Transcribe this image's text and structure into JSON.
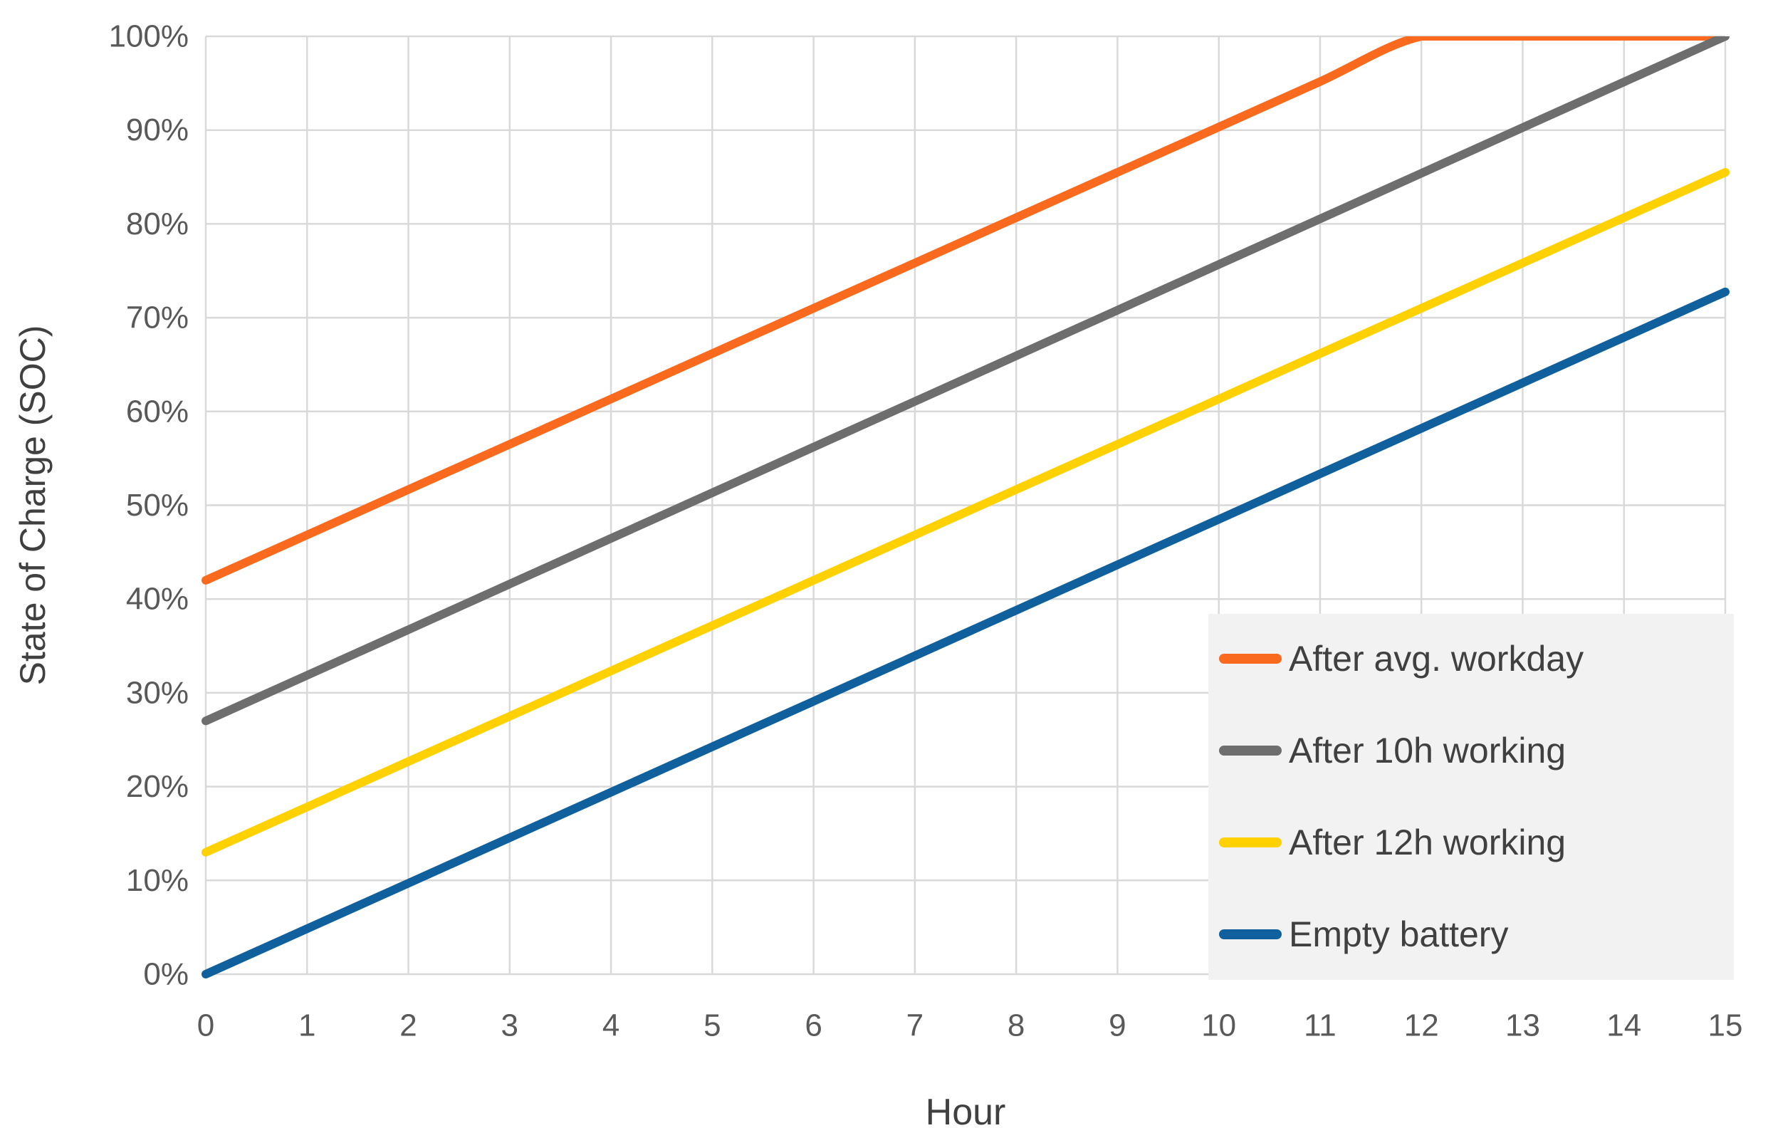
{
  "colors": {
    "background": "#FFFFFF",
    "grid": "#D9D9D9",
    "axis": "#D9D9D9",
    "tick_text": "#595959",
    "title_text": "#404040",
    "legend_bg": "#F2F2F2",
    "legend_text": "#404040"
  },
  "chart_data": {
    "type": "line",
    "title": "",
    "xlabel": "Hour",
    "ylabel": "State of Charge (SOC)",
    "xlim": [
      0,
      15
    ],
    "ylim": [
      0,
      100
    ],
    "grid": true,
    "smooth": true,
    "legend_position": "inside-bottom-right",
    "x": [
      0,
      1,
      2,
      3,
      4,
      5,
      6,
      7,
      8,
      9,
      10,
      11,
      12,
      13,
      14,
      15
    ],
    "x_tick_labels": [
      "0",
      "1",
      "2",
      "3",
      "4",
      "5",
      "6",
      "7",
      "8",
      "9",
      "10",
      "11",
      "12",
      "13",
      "14",
      "15"
    ],
    "y_ticks": [
      0,
      10,
      20,
      30,
      40,
      50,
      60,
      70,
      80,
      90,
      100
    ],
    "y_tick_labels": [
      "0%",
      "10%",
      "20%",
      "30%",
      "40%",
      "50%",
      "60%",
      "70%",
      "80%",
      "90%",
      "100%"
    ],
    "series": [
      {
        "name": "After avg. workday",
        "color": "#F96A1E",
        "values": [
          42,
          46.83,
          51.67,
          56.5,
          61.33,
          66.17,
          71,
          75.83,
          80.67,
          85.5,
          90.33,
          95.17,
          100,
          100,
          100,
          100
        ]
      },
      {
        "name": "After 10h working",
        "color": "#6E6E6E",
        "values": [
          27,
          31.87,
          36.73,
          41.6,
          46.47,
          51.33,
          56.2,
          61.07,
          65.93,
          70.8,
          75.67,
          80.53,
          85.4,
          90.27,
          95.13,
          100
        ]
      },
      {
        "name": "After 12h working",
        "color": "#FFD100",
        "values": [
          13,
          17.83,
          22.67,
          27.5,
          32.33,
          37.17,
          42,
          46.83,
          51.67,
          56.5,
          61.33,
          66.17,
          71,
          75.83,
          80.67,
          85.5
        ]
      },
      {
        "name": "Empty battery",
        "color": "#10609D",
        "values": [
          0,
          4.85,
          9.7,
          14.55,
          19.4,
          24.25,
          29.1,
          33.95,
          38.8,
          43.65,
          48.5,
          53.35,
          58.2,
          63.05,
          67.9,
          72.75
        ]
      }
    ]
  }
}
